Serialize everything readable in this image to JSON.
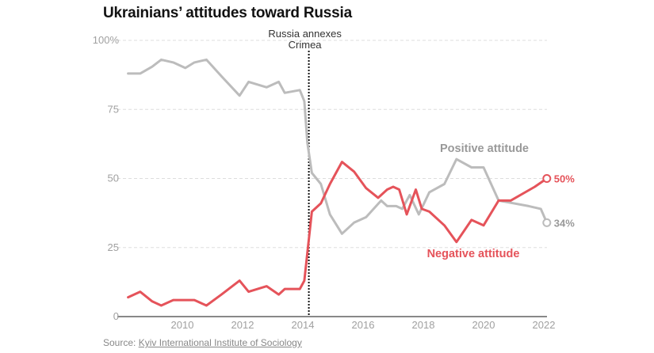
{
  "chart_data": {
    "type": "line",
    "title": "Ukrainians’ attitudes toward Russia",
    "xlabel": "",
    "ylabel": "",
    "xlim": [
      2008,
      2022
    ],
    "ylim": [
      0,
      100
    ],
    "x_ticks": [
      "2010",
      "2012",
      "2014",
      "2016",
      "2018",
      "2020",
      "2022"
    ],
    "x_tick_values": [
      2010,
      2012,
      2014,
      2016,
      2018,
      2020,
      2022
    ],
    "y_ticks": [
      "0",
      "25",
      "50",
      "75",
      "100%"
    ],
    "y_tick_values": [
      0,
      25,
      50,
      75,
      100
    ],
    "grid": true,
    "annotation": {
      "x": 2014.2,
      "lines": [
        "Russia annexes",
        "Crimea"
      ]
    },
    "series": [
      {
        "name": "Positive attitude",
        "color": "#bcbcbc",
        "label_color": "#999999",
        "end_label": "34%",
        "points": [
          [
            2008.2,
            88
          ],
          [
            2008.6,
            88
          ],
          [
            2009.0,
            90.5
          ],
          [
            2009.3,
            93
          ],
          [
            2009.7,
            92
          ],
          [
            2010.1,
            90
          ],
          [
            2010.4,
            92
          ],
          [
            2010.8,
            93
          ],
          [
            2011.3,
            87
          ],
          [
            2011.9,
            80
          ],
          [
            2012.2,
            85
          ],
          [
            2012.8,
            83
          ],
          [
            2013.2,
            85
          ],
          [
            2013.4,
            81
          ],
          [
            2013.9,
            82
          ],
          [
            2014.05,
            78
          ],
          [
            2014.15,
            63
          ],
          [
            2014.3,
            52
          ],
          [
            2014.6,
            48
          ],
          [
            2014.9,
            37
          ],
          [
            2015.3,
            30
          ],
          [
            2015.7,
            34
          ],
          [
            2016.1,
            36
          ],
          [
            2016.6,
            42
          ],
          [
            2016.8,
            40
          ],
          [
            2017.1,
            40
          ],
          [
            2017.3,
            39
          ],
          [
            2017.55,
            44
          ],
          [
            2017.85,
            37
          ],
          [
            2018.2,
            45
          ],
          [
            2018.7,
            48
          ],
          [
            2019.1,
            57
          ],
          [
            2019.6,
            54
          ],
          [
            2020.0,
            54
          ],
          [
            2020.5,
            42
          ],
          [
            2021.5,
            40
          ],
          [
            2021.9,
            39
          ],
          [
            2022.1,
            34
          ]
        ]
      },
      {
        "name": "Negative attitude",
        "color": "#e5535a",
        "label_color": "#e5535a",
        "end_label": "50%",
        "points": [
          [
            2008.2,
            7
          ],
          [
            2008.6,
            9
          ],
          [
            2009.0,
            5.5
          ],
          [
            2009.3,
            4
          ],
          [
            2009.7,
            6
          ],
          [
            2010.1,
            6
          ],
          [
            2010.4,
            6
          ],
          [
            2010.8,
            4
          ],
          [
            2011.3,
            8
          ],
          [
            2011.9,
            13
          ],
          [
            2012.2,
            9
          ],
          [
            2012.8,
            11
          ],
          [
            2013.2,
            8
          ],
          [
            2013.4,
            10
          ],
          [
            2013.9,
            10
          ],
          [
            2014.05,
            13
          ],
          [
            2014.3,
            38
          ],
          [
            2014.6,
            41
          ],
          [
            2014.9,
            48
          ],
          [
            2015.3,
            56
          ],
          [
            2015.7,
            52.5
          ],
          [
            2016.1,
            46.5
          ],
          [
            2016.5,
            43
          ],
          [
            2016.8,
            46
          ],
          [
            2017.0,
            47
          ],
          [
            2017.2,
            46
          ],
          [
            2017.45,
            37
          ],
          [
            2017.75,
            46
          ],
          [
            2017.95,
            39
          ],
          [
            2018.2,
            38
          ],
          [
            2018.7,
            33
          ],
          [
            2019.1,
            27
          ],
          [
            2019.6,
            35
          ],
          [
            2020.0,
            33
          ],
          [
            2020.5,
            42
          ],
          [
            2020.9,
            42
          ],
          [
            2021.7,
            47
          ],
          [
            2022.1,
            50
          ]
        ]
      }
    ]
  },
  "source": {
    "prefix": "Source: ",
    "link_text": "Kyiv International Institute of Sociology"
  }
}
